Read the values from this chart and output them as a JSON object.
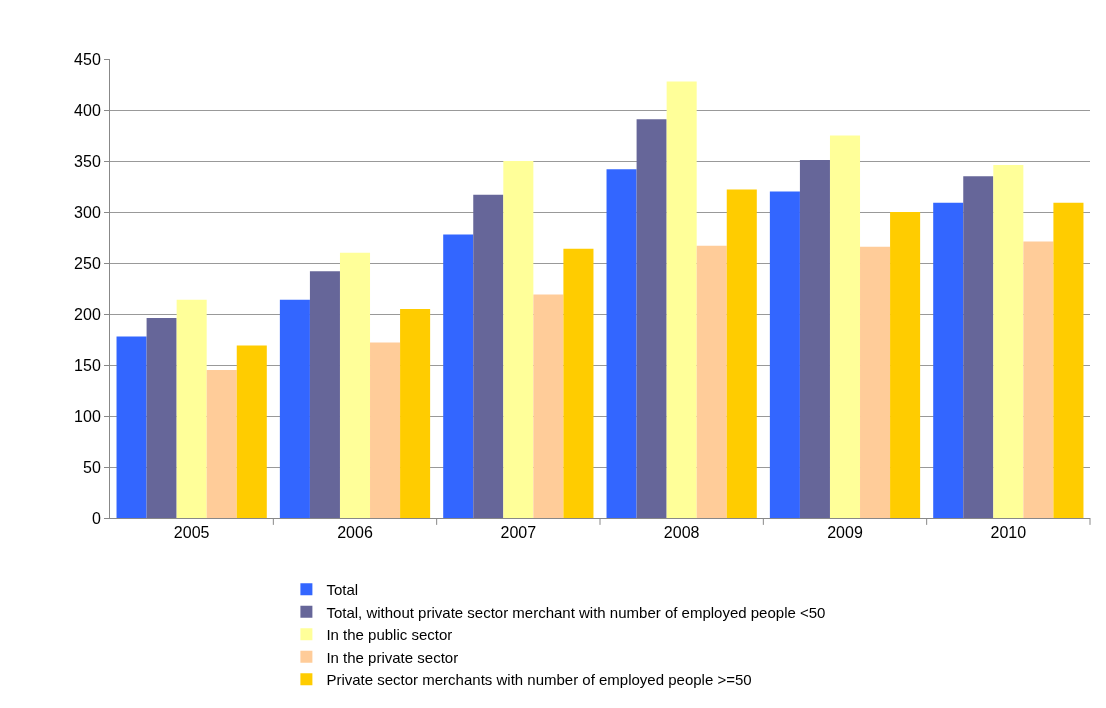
{
  "chart_data": {
    "type": "bar",
    "categories": [
      "2005",
      "2006",
      "2007",
      "2008",
      "2009",
      "2010"
    ],
    "series": [
      {
        "name": "Total",
        "color": "#3366ff",
        "values": [
          178,
          214,
          278,
          342,
          320,
          309
        ]
      },
      {
        "name": "Total, without private sector merchant with number of employed people <50",
        "color": "#666699",
        "values": [
          196,
          242,
          317,
          391,
          351,
          335
        ]
      },
      {
        "name": "In the public sector",
        "color": "#ffff99",
        "values": [
          214,
          260,
          350,
          428,
          375,
          346
        ]
      },
      {
        "name": "In the private sector",
        "color": "#ffcc99",
        "values": [
          145,
          172,
          219,
          267,
          266,
          271
        ]
      },
      {
        "name": "Private sector merchants with number of employed people >=50",
        "color": "#ffcc00",
        "values": [
          169,
          205,
          264,
          322,
          300,
          309
        ]
      }
    ],
    "ylim": [
      0,
      450
    ],
    "yticks": [
      0,
      50,
      100,
      150,
      200,
      250,
      300,
      350,
      400,
      450
    ],
    "grid": "y",
    "legend": "bottom"
  }
}
